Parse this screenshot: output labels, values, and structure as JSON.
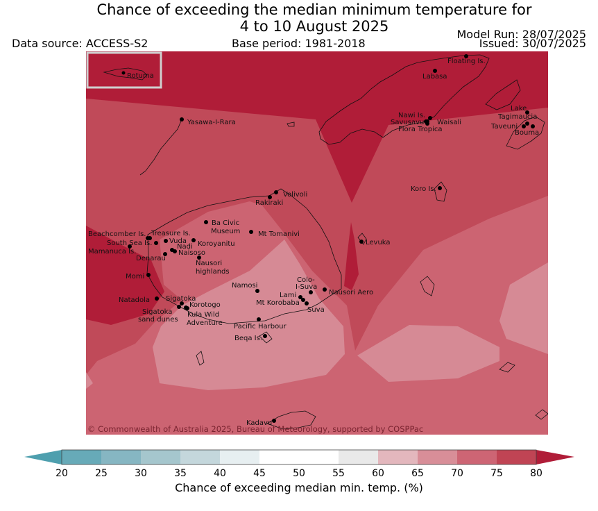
{
  "header": {
    "title_line1": "Chance of exceeding the median minimum temperature for",
    "title_line2": "4 to 10 August 2025",
    "data_source": "Data source: ACCESS-S2",
    "base_period": "Base period: 1981-2018",
    "model_run": "Model Run: 28/07/2025",
    "issued": "Issued: 30/07/2025"
  },
  "map": {
    "copyright": "© Commonwealth of Australia 2025, Bureau of Meteorology, supported by COSPPac",
    "inset_label": "Rotuma",
    "band_colors": {
      "c75_80": "#b01d38",
      "c70_75": "#c04a59",
      "c65_70": "#cc6472",
      "c60_65": "#d68a95"
    },
    "places": [
      {
        "name": "Floating Is."
      },
      {
        "name": "Labasa"
      },
      {
        "name": "Yasawa-I-Rara"
      },
      {
        "name": "Nawi Is."
      },
      {
        "name": "Savusavu"
      },
      {
        "name": "Waisali"
      },
      {
        "name": "Flora Tropica"
      },
      {
        "name": "Lake"
      },
      {
        "name": "Tagimaucia"
      },
      {
        "name": "Taveuni"
      },
      {
        "name": "Bouma"
      },
      {
        "name": "Koro Is."
      },
      {
        "name": "Volivoli"
      },
      {
        "name": "Rakiraki"
      },
      {
        "name": "Ba Civic"
      },
      {
        "name": "Museum"
      },
      {
        "name": "Mt Tomanivi"
      },
      {
        "name": "Beachcomber Is."
      },
      {
        "name": "Treasure Is."
      },
      {
        "name": "Vuda"
      },
      {
        "name": "South Sea Is."
      },
      {
        "name": "Koroyanitu"
      },
      {
        "name": "Nadi"
      },
      {
        "name": "Mamanuca Is."
      },
      {
        "name": "Naisoso"
      },
      {
        "name": "Denarau"
      },
      {
        "name": "Nausori"
      },
      {
        "name": "highlands"
      },
      {
        "name": "Levuka"
      },
      {
        "name": "Momi"
      },
      {
        "name": "Colo-"
      },
      {
        "name": "I-Suva"
      },
      {
        "name": "Namosi"
      },
      {
        "name": "Lami"
      },
      {
        "name": "Nausori Aero"
      },
      {
        "name": "Mt Korobaba"
      },
      {
        "name": "Suva"
      },
      {
        "name": "Natadola"
      },
      {
        "name": "Sigatoka"
      },
      {
        "name": "Korotogo"
      },
      {
        "name": "Sigatoka"
      },
      {
        "name": "sand dunes"
      },
      {
        "name": "Kula Wild"
      },
      {
        "name": "Adventure"
      },
      {
        "name": "Pacific Harbour"
      },
      {
        "name": "Beqa Is."
      },
      {
        "name": "Kadavu"
      }
    ]
  },
  "colorbar": {
    "label": "Chance of exceeding median min. temp. (%)",
    "ticks": [
      "20",
      "25",
      "30",
      "35",
      "40",
      "45",
      "50",
      "55",
      "60",
      "65",
      "70",
      "75",
      "80"
    ],
    "colors": [
      "#67aab8",
      "#86b6c2",
      "#a5c6cd",
      "#c4d7dc",
      "#e7eff1",
      "#ffffff",
      "#ffffff",
      "#e9e9e9",
      "#e3b7bd",
      "#d88e98",
      "#cd6574",
      "#c04454"
    ],
    "under_color": "#4e9fae",
    "over_color": "#b01d38"
  }
}
